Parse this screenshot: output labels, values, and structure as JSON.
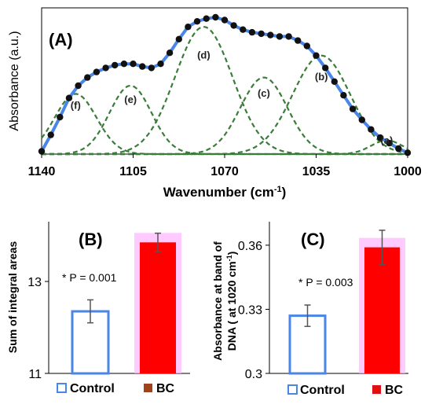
{
  "chart_data": [
    {
      "type": "line",
      "panel_label": "(A)",
      "xlabel": "Wavenumber (cm",
      "xlabel_sup": "-1",
      "xlabel_tail": ")",
      "ylabel": "Absorbance (a.u.)",
      "x_reversed": true,
      "xlim": [
        1140,
        1000
      ],
      "ylim": [
        0,
        1.0
      ],
      "xticks": [
        "1140",
        "1105",
        "1070",
        "1035",
        "1000"
      ],
      "xtick_values": [
        1140,
        1105,
        1070,
        1035,
        1000
      ],
      "colors": {
        "fit": "#4a86e8",
        "component": "#3a7d3a",
        "points": "#111111"
      },
      "measured_x": [
        1140,
        1136.5,
        1133,
        1129.5,
        1126,
        1122.5,
        1119,
        1115.5,
        1112,
        1108.5,
        1105,
        1101.5,
        1098,
        1094.5,
        1091,
        1087.5,
        1084,
        1080.5,
        1077,
        1073.5,
        1070,
        1066.5,
        1063,
        1059.5,
        1056,
        1052.5,
        1049,
        1045.5,
        1042,
        1038.5,
        1035,
        1031.5,
        1028,
        1024.5,
        1021,
        1017.5,
        1014,
        1010.5,
        1007,
        1003.5,
        1000
      ],
      "measured_y": [
        0.02,
        0.14,
        0.27,
        0.41,
        0.5,
        0.56,
        0.6,
        0.63,
        0.65,
        0.66,
        0.66,
        0.64,
        0.63,
        0.66,
        0.74,
        0.84,
        0.93,
        0.97,
        0.99,
        1.0,
        0.98,
        0.94,
        0.91,
        0.89,
        0.88,
        0.87,
        0.86,
        0.86,
        0.83,
        0.79,
        0.72,
        0.63,
        0.53,
        0.43,
        0.33,
        0.25,
        0.18,
        0.12,
        0.08,
        0.04,
        0.01
      ],
      "components": [
        {
          "label": "(a)",
          "center": 1008,
          "amp": 0.1,
          "width": 6
        },
        {
          "label": "(b)",
          "center": 1033,
          "amp": 0.72,
          "width": 11
        },
        {
          "label": "(c)",
          "center": 1055,
          "amp": 0.56,
          "width": 9
        },
        {
          "label": "(d)",
          "center": 1078,
          "amp": 0.93,
          "width": 11
        },
        {
          "label": "(e)",
          "center": 1106,
          "amp": 0.5,
          "width": 8
        },
        {
          "label": "(f)",
          "center": 1127,
          "amp": 0.44,
          "width": 8
        }
      ]
    },
    {
      "type": "bar",
      "panel_label": "(B)",
      "ylabel": "Sum of integral areas",
      "categories": [
        "Control",
        "BC"
      ],
      "values": [
        12.35,
        13.85
      ],
      "errors": [
        0.25,
        0.2
      ],
      "ylim": [
        11,
        14.3
      ],
      "yticks": [
        "11",
        "13"
      ],
      "ytick_values": [
        11,
        13
      ],
      "annotation": "* P = 0.001",
      "legend": [
        "Control",
        "BC"
      ],
      "colors": {
        "control": "#4a86e8",
        "bc": "#ff0000",
        "bc_legend": "#a0421a",
        "glow": "#ffb3ff"
      }
    },
    {
      "type": "bar",
      "panel_label": "(C)",
      "ylabel_line1": "Absorbance at band of",
      "ylabel_line2": "DNA ( at 1020 cm",
      "ylabel_sup": "-1",
      "ylabel_tail": ")",
      "categories": [
        "Control",
        "BC"
      ],
      "values": [
        0.327,
        0.359
      ],
      "errors": [
        0.005,
        0.008
      ],
      "ylim": [
        0.3,
        0.371
      ],
      "yticks": [
        "0.3",
        "0.33",
        "0.36"
      ],
      "ytick_values": [
        0.3,
        0.33,
        0.36
      ],
      "annotation": "* P = 0.003",
      "legend": [
        "Control",
        "BC"
      ],
      "colors": {
        "control": "#4a86e8",
        "bc": "#ff0000",
        "bc_legend": "#e01010",
        "glow": "#ffb3ff"
      }
    }
  ]
}
